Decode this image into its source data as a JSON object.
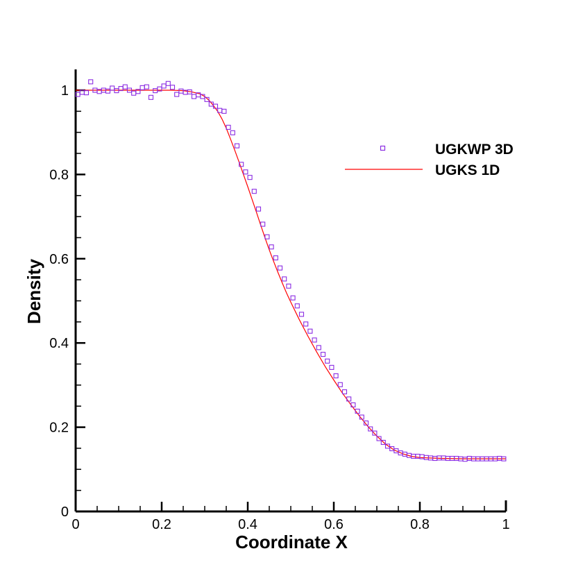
{
  "chart_data": {
    "type": "line",
    "xlabel": "Coordinate X",
    "ylabel": "Density",
    "xlim": [
      0,
      1
    ],
    "ylim": [
      0,
      1.05
    ],
    "x_ticks": [
      {
        "value": 0,
        "label": "0"
      },
      {
        "value": 0.2,
        "label": "0.2"
      },
      {
        "value": 0.4,
        "label": "0.4"
      },
      {
        "value": 0.6,
        "label": "0.6"
      },
      {
        "value": 0.8,
        "label": "0.8"
      },
      {
        "value": 1,
        "label": "1"
      }
    ],
    "y_ticks": [
      {
        "value": 0,
        "label": "0"
      },
      {
        "value": 0.2,
        "label": "0.2"
      },
      {
        "value": 0.4,
        "label": "0.4"
      },
      {
        "value": 0.6,
        "label": "0.6"
      },
      {
        "value": 0.8,
        "label": "0.8"
      },
      {
        "value": 1,
        "label": "1"
      }
    ],
    "grid": false,
    "legend_position": "top-right",
    "series": [
      {
        "name": "UGKWP 3D",
        "style": "square-markers",
        "color": "#8A2BE2",
        "x": [
          0.005,
          0.015,
          0.025,
          0.035,
          0.045,
          0.055,
          0.065,
          0.075,
          0.085,
          0.095,
          0.105,
          0.115,
          0.125,
          0.135,
          0.145,
          0.155,
          0.165,
          0.175,
          0.185,
          0.195,
          0.205,
          0.215,
          0.225,
          0.235,
          0.245,
          0.255,
          0.265,
          0.275,
          0.285,
          0.295,
          0.305,
          0.315,
          0.325,
          0.335,
          0.345,
          0.355,
          0.365,
          0.375,
          0.385,
          0.395,
          0.405,
          0.415,
          0.425,
          0.435,
          0.445,
          0.455,
          0.465,
          0.475,
          0.485,
          0.495,
          0.505,
          0.515,
          0.525,
          0.535,
          0.545,
          0.555,
          0.565,
          0.575,
          0.585,
          0.595,
          0.605,
          0.615,
          0.625,
          0.635,
          0.645,
          0.655,
          0.665,
          0.675,
          0.685,
          0.695,
          0.705,
          0.715,
          0.725,
          0.735,
          0.745,
          0.755,
          0.765,
          0.775,
          0.785,
          0.795,
          0.805,
          0.815,
          0.825,
          0.835,
          0.845,
          0.855,
          0.865,
          0.875,
          0.885,
          0.895,
          0.905,
          0.915,
          0.925,
          0.935,
          0.945,
          0.955,
          0.965,
          0.975,
          0.985,
          0.995
        ],
        "values": [
          0.99,
          0.995,
          0.994,
          1.02,
          1.0,
          0.997,
          1.0,
          0.998,
          1.005,
          0.999,
          1.004,
          1.008,
          1.0,
          0.993,
          0.997,
          1.006,
          1.008,
          0.983,
          0.999,
          1.003,
          1.01,
          1.016,
          1.007,
          0.99,
          0.998,
          0.995,
          0.996,
          0.985,
          0.989,
          0.985,
          0.978,
          0.967,
          0.962,
          0.952,
          0.95,
          0.912,
          0.899,
          0.868,
          0.824,
          0.806,
          0.793,
          0.76,
          0.718,
          0.682,
          0.652,
          0.628,
          0.602,
          0.578,
          0.552,
          0.535,
          0.507,
          0.488,
          0.468,
          0.445,
          0.428,
          0.407,
          0.389,
          0.373,
          0.357,
          0.342,
          0.322,
          0.301,
          0.284,
          0.267,
          0.253,
          0.238,
          0.224,
          0.21,
          0.196,
          0.186,
          0.173,
          0.164,
          0.155,
          0.149,
          0.144,
          0.139,
          0.136,
          0.133,
          0.131,
          0.131,
          0.13,
          0.128,
          0.127,
          0.126,
          0.127,
          0.127,
          0.126,
          0.126,
          0.126,
          0.125,
          0.124,
          0.126,
          0.125,
          0.125,
          0.125,
          0.125,
          0.125,
          0.125,
          0.126,
          0.125
        ]
      },
      {
        "name": "UGKS 1D",
        "style": "line",
        "color": "#FF0000",
        "x": [
          0,
          0.05,
          0.1,
          0.15,
          0.2,
          0.22,
          0.25,
          0.27,
          0.29,
          0.3,
          0.31,
          0.32,
          0.33,
          0.34,
          0.35,
          0.36,
          0.37,
          0.38,
          0.39,
          0.4,
          0.41,
          0.42,
          0.43,
          0.44,
          0.45,
          0.46,
          0.47,
          0.48,
          0.49,
          0.5,
          0.52,
          0.54,
          0.56,
          0.58,
          0.6,
          0.62,
          0.64,
          0.66,
          0.68,
          0.7,
          0.72,
          0.74,
          0.76,
          0.78,
          0.8,
          0.82,
          0.85,
          0.9,
          0.95,
          1.0
        ],
        "values": [
          1.0,
          1.0,
          1.0,
          1.0,
          1.0,
          1.0,
          0.999,
          0.996,
          0.991,
          0.985,
          0.976,
          0.964,
          0.95,
          0.932,
          0.91,
          0.884,
          0.857,
          0.829,
          0.8,
          0.771,
          0.741,
          0.711,
          0.68,
          0.65,
          0.621,
          0.594,
          0.568,
          0.543,
          0.519,
          0.497,
          0.455,
          0.416,
          0.379,
          0.344,
          0.312,
          0.281,
          0.253,
          0.226,
          0.201,
          0.179,
          0.16,
          0.146,
          0.137,
          0.131,
          0.128,
          0.127,
          0.126,
          0.125,
          0.125,
          0.125
        ]
      }
    ]
  }
}
